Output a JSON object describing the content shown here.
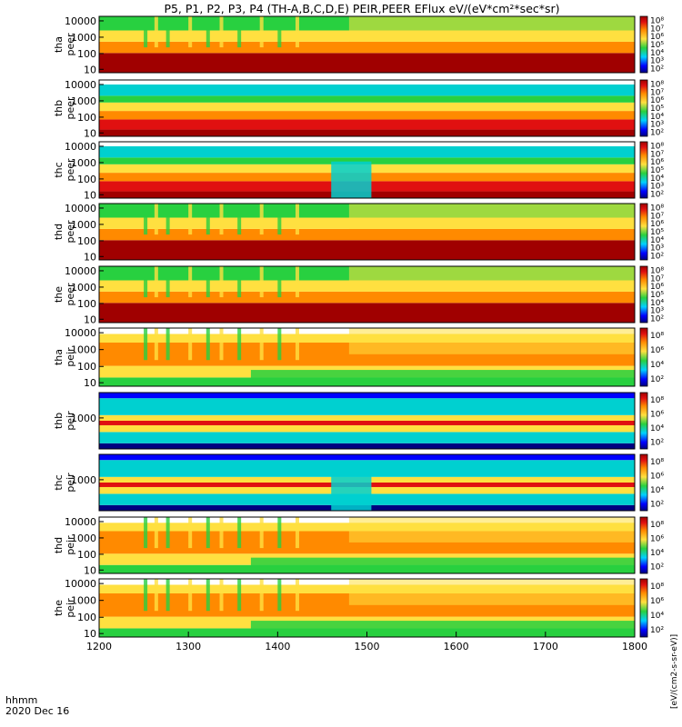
{
  "title": "P5, P1, P2, P3, P4 (TH-A,B,C,D,E) PEIR,PEER EFlux eV/(eV*cm²*sec*sr)",
  "footer": {
    "time_label": "hhmm",
    "date_label": "2020 Dec 16"
  },
  "colorbar_label": "[eV/(cm2-s-sr-eV)]",
  "colors": {
    "dark_red": "#a00000",
    "red": "#e01010",
    "orange": "#ff8a00",
    "yellow": "#ffe040",
    "green": "#28d040",
    "cyan": "#00d0d0",
    "blue": "#0000ff",
    "navy": "#000080",
    "black": "#000000"
  },
  "chart_data": {
    "type": "heatmap",
    "x_axis": {
      "range": [
        1200,
        1800
      ],
      "ticks": [
        "1200",
        "1300",
        "1400",
        "1500",
        "1600",
        "1700",
        "1800"
      ]
    },
    "panels": [
      {
        "label": "tha\npeer",
        "y_scale": "log",
        "y_ticks": [
          "10",
          "100",
          "1000",
          "10000"
        ],
        "cb_ticks": [
          "10²",
          "10³",
          "10⁴",
          "10⁵",
          "10⁶",
          "10⁷",
          "10⁸"
        ]
      },
      {
        "label": "thb\npeer",
        "y_scale": "log",
        "y_ticks": [
          "10",
          "100",
          "1000",
          "10000"
        ],
        "cb_ticks": [
          "10²",
          "10³",
          "10⁴",
          "10⁵",
          "10⁶",
          "10⁷",
          "10⁸"
        ]
      },
      {
        "label": "thc\npeer",
        "y_scale": "log",
        "y_ticks": [
          "10",
          "100",
          "1000",
          "10000"
        ],
        "cb_ticks": [
          "10²",
          "10³",
          "10⁴",
          "10⁵",
          "10⁶",
          "10⁷",
          "10⁸"
        ]
      },
      {
        "label": "thd\npeer",
        "y_scale": "log",
        "y_ticks": [
          "10",
          "100",
          "1000",
          "10000"
        ],
        "cb_ticks": [
          "10²",
          "10³",
          "10⁴",
          "10⁵",
          "10⁶",
          "10⁷",
          "10⁸"
        ]
      },
      {
        "label": "the\npeer",
        "y_scale": "log",
        "y_ticks": [
          "10",
          "100",
          "1000",
          "10000"
        ],
        "cb_ticks": [
          "10²",
          "10³",
          "10⁴",
          "10⁵",
          "10⁶",
          "10⁷",
          "10⁸"
        ]
      },
      {
        "label": "tha\npeir",
        "y_scale": "log",
        "y_ticks": [
          "10",
          "100",
          "1000",
          "10000"
        ],
        "cb_ticks": [
          "10²",
          "10⁴",
          "10⁶",
          "10⁸"
        ]
      },
      {
        "label": "thb\npeir",
        "y_scale": "log",
        "y_ticks": [
          "1000"
        ],
        "cb_ticks": [
          "10²",
          "10⁴",
          "10⁶",
          "10⁸"
        ]
      },
      {
        "label": "thc\npeir",
        "y_scale": "log",
        "y_ticks": [
          "1000"
        ],
        "cb_ticks": [
          "10²",
          "10⁴",
          "10⁶",
          "10⁸"
        ]
      },
      {
        "label": "thd\npeir",
        "y_scale": "log",
        "y_ticks": [
          "10",
          "100",
          "1000",
          "10000"
        ],
        "cb_ticks": [
          "10²",
          "10⁴",
          "10⁶",
          "10⁸"
        ]
      },
      {
        "label": "the\npeir",
        "y_scale": "log",
        "y_ticks": [
          "10",
          "100",
          "1000",
          "10000"
        ],
        "cb_ticks": [
          "10²",
          "10⁴",
          "10⁶",
          "10⁸"
        ]
      }
    ]
  }
}
